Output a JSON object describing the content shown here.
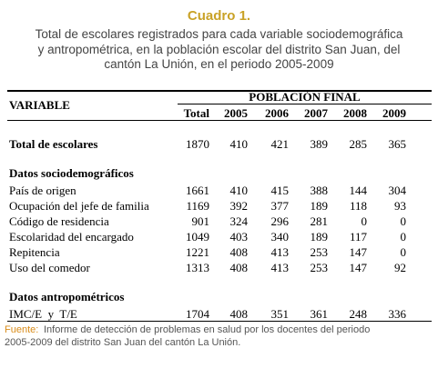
{
  "caption": {
    "label": "Cuadro 1.",
    "lines": [
      "Total de escolares registrados para cada variable sociodemográfica",
      "y antropométrica, en la población escolar del distrito San Juan, del",
      "cantón La Unión, en el periodo 2005-2009"
    ]
  },
  "table": {
    "variable_header": "VARIABLE",
    "group_header": "POBLACIÓN FINAL",
    "columns": [
      "Total",
      "2005",
      "2006",
      "2007",
      "2008",
      "2009"
    ],
    "total_row": {
      "label": "Total de escolares",
      "values": [
        1870,
        410,
        421,
        389,
        285,
        365
      ]
    },
    "sections": [
      {
        "title": "Datos sociodemográficos",
        "rows": [
          {
            "label": "País de origen",
            "values": [
              1661,
              410,
              415,
              388,
              144,
              304
            ]
          },
          {
            "label": "Ocupación del jefe de familia",
            "values": [
              1169,
              392,
              377,
              189,
              118,
              93
            ]
          },
          {
            "label": "Código de residencia",
            "values": [
              901,
              324,
              296,
              281,
              0,
              0
            ]
          },
          {
            "label": "Escolaridad del encargado",
            "values": [
              1049,
              403,
              340,
              189,
              117,
              0
            ]
          },
          {
            "label": "Repitencia",
            "values": [
              1221,
              408,
              413,
              253,
              147,
              0
            ]
          },
          {
            "label": "Uso del comedor",
            "values": [
              1313,
              408,
              413,
              253,
              147,
              92
            ]
          }
        ]
      },
      {
        "title": "Datos antropométricos",
        "rows": [
          {
            "label": "IMC/E  y  T/E",
            "values": [
              1704,
              408,
              351,
              361,
              248,
              336
            ]
          }
        ]
      }
    ]
  },
  "source": {
    "label": "Fuente:",
    "lines": [
      "Informe de detección de problemas en salud por los docentes del periodo",
      "2005-2009 del distrito San Juan del cantón La Unión."
    ]
  }
}
